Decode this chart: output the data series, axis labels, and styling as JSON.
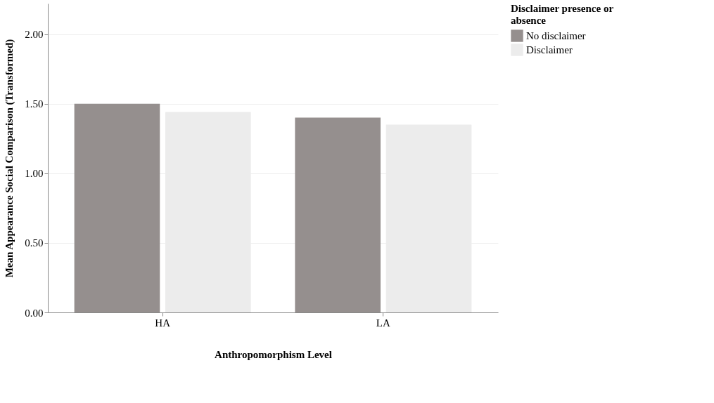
{
  "chart_data": {
    "type": "bar",
    "xlabel": "Anthropomorphism Level",
    "ylabel": "Mean Appearance Social Comparison (Transformed)",
    "legend_title": "Disclaimer presence or absence",
    "categories": [
      "HA",
      "LA"
    ],
    "series": [
      {
        "name": "No disclaimer",
        "color": "#958f8e",
        "values": [
          1.5,
          1.4
        ]
      },
      {
        "name": "Disclaimer",
        "color": "#ececec",
        "values": [
          1.44,
          1.35
        ]
      }
    ],
    "ylim": [
      0,
      2.22
    ],
    "yticks": [
      {
        "value": 0,
        "label": "0.00"
      },
      {
        "value": 0.5,
        "label": "0.50"
      },
      {
        "value": 1,
        "label": "1.00"
      },
      {
        "value": 1.5,
        "label": "1.50"
      },
      {
        "value": 2,
        "label": "2.00"
      }
    ],
    "grid": "y",
    "legend": "top right"
  }
}
